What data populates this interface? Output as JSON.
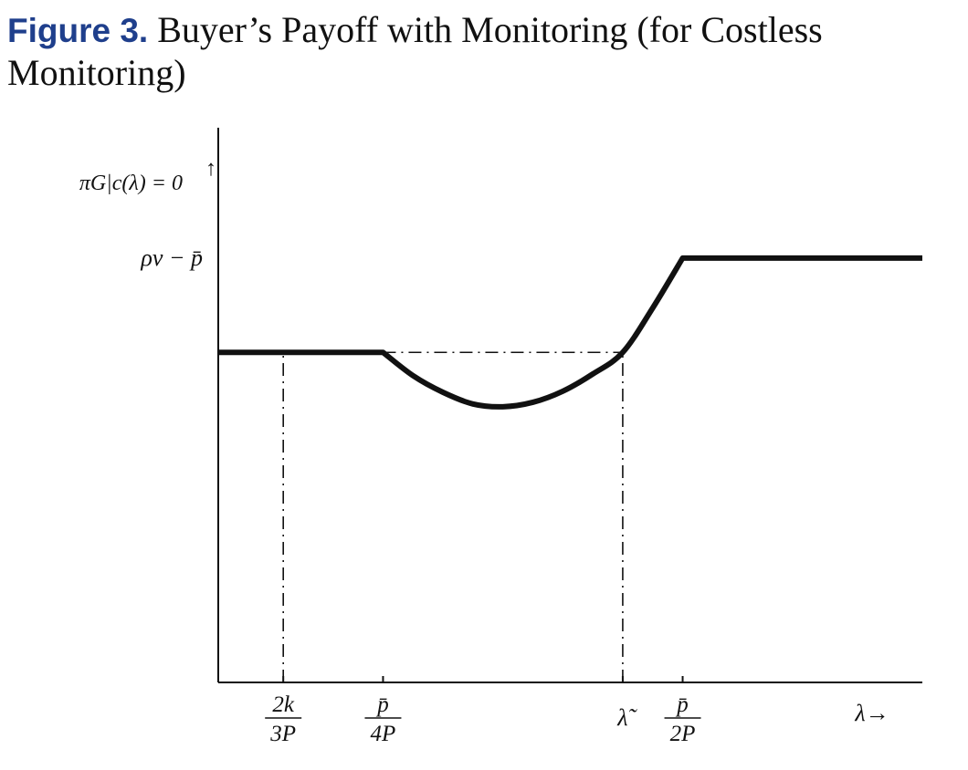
{
  "figure": {
    "label": "Figure 3.",
    "title_line1": "Buyer’s Payoff with Monitoring (for Costless",
    "title_line2": "Monitoring)"
  },
  "chart_data": {
    "type": "line",
    "title": "Buyer’s Payoff with Monitoring (for Costless Monitoring)",
    "ylabel": "πG|c(λ) = 0",
    "y_arrow": "↑",
    "xlabel": "λ→",
    "y_tick_label": "ρv − p̄",
    "x_ticks": [
      {
        "num": "2k",
        "den": "3P"
      },
      {
        "num": "p̄",
        "den": "4P"
      },
      {
        "single": "λ̃"
      },
      {
        "num": "p̄",
        "den": "2P"
      }
    ],
    "x_tick_values": [
      0.667,
      1.0,
      1.8,
      2.0
    ],
    "xlim": [
      0.45,
      2.8
    ],
    "ylim": [
      0,
      1
    ],
    "series": [
      {
        "style": "solid",
        "x": [
          0.45,
          1.0,
          1.1,
          1.2,
          1.3,
          1.4,
          1.5,
          1.6,
          1.7,
          1.8,
          1.9,
          2.0,
          2.8
        ],
        "y": [
          0.595,
          0.595,
          0.553,
          0.523,
          0.502,
          0.497,
          0.505,
          0.525,
          0.556,
          0.595,
          0.675,
          0.765,
          0.765
        ]
      }
    ],
    "reference_lines": [
      {
        "style": "dash-dot",
        "orientation": "horizontal",
        "y": 0.595,
        "x_from": 1.0,
        "x_to": 1.8
      },
      {
        "style": "dash-dot",
        "orientation": "vertical",
        "x": 0.667,
        "y_from": 0,
        "y_to": 0.595
      },
      {
        "style": "dash-dot",
        "orientation": "vertical",
        "x": 1.8,
        "y_from": 0,
        "y_to": 0.595
      }
    ],
    "y_tick_value": 0.765
  }
}
